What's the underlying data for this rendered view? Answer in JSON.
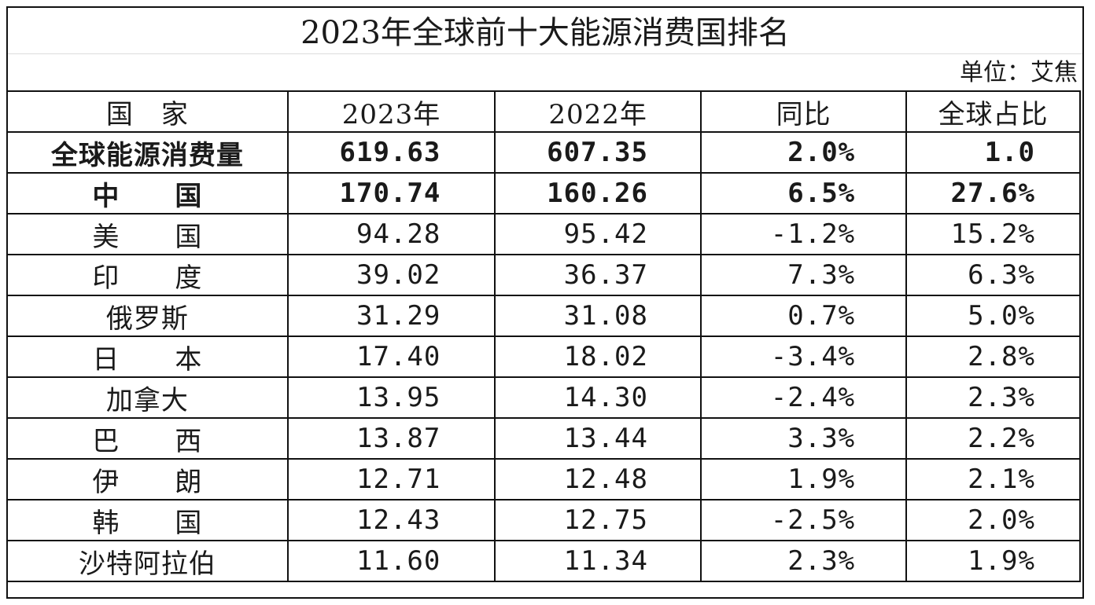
{
  "chart_data": {
    "type": "table",
    "title": "2023年全球前十大能源消费国排名",
    "unit": "单位：艾焦",
    "columns": [
      "国　家",
      "2023年",
      "2022年",
      "同比",
      "全球占比"
    ],
    "rows": [
      [
        "全球能源消费量",
        "619.63",
        "607.35",
        "2.0%",
        "1.0"
      ],
      [
        "中　　国",
        "170.74",
        "160.26",
        "6.5%",
        "27.6%"
      ],
      [
        "美　　国",
        "94.28",
        "95.42",
        "-1.2%",
        "15.2%"
      ],
      [
        "印　　度",
        "39.02",
        "36.37",
        "7.3%",
        "6.3%"
      ],
      [
        "俄罗斯",
        "31.29",
        "31.08",
        "0.7%",
        "5.0%"
      ],
      [
        "日　　本",
        "17.40",
        "18.02",
        "-3.4%",
        "2.8%"
      ],
      [
        "加拿大",
        "13.95",
        "14.30",
        "-2.4%",
        "2.3%"
      ],
      [
        "巴　　西",
        "13.87",
        "13.44",
        "3.3%",
        "2.2%"
      ],
      [
        "伊　　朗",
        "12.71",
        "12.48",
        "1.9%",
        "2.1%"
      ],
      [
        "韩　　国",
        "12.43",
        "12.75",
        "-2.5%",
        "2.0%"
      ],
      [
        "沙特阿拉伯",
        "11.60",
        "11.34",
        "2.3%",
        "1.9%"
      ]
    ],
    "bold_rows": [
      0,
      1
    ]
  }
}
